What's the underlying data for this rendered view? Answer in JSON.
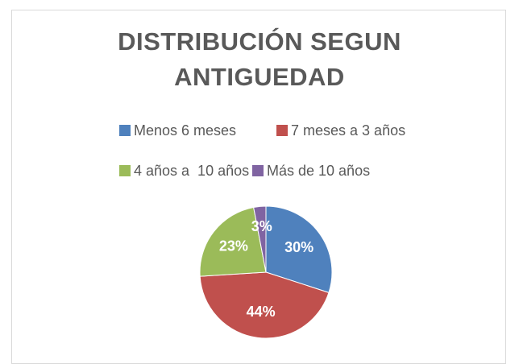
{
  "chart_data": {
    "type": "pie",
    "title": "DISTRIBUCIÓN SEGUN ANTIGUEDAD",
    "categories": [
      "Menos 6 meses",
      "7 meses a 3 años",
      "4 años a  10 años",
      "Más de 10 años"
    ],
    "values": [
      30,
      44,
      23,
      3
    ],
    "value_labels": [
      "30%",
      "44%",
      "23%",
      "3%"
    ],
    "colors": [
      "#4f81bd",
      "#c0504d",
      "#9bbb59",
      "#8064a2"
    ],
    "legend": "top"
  }
}
